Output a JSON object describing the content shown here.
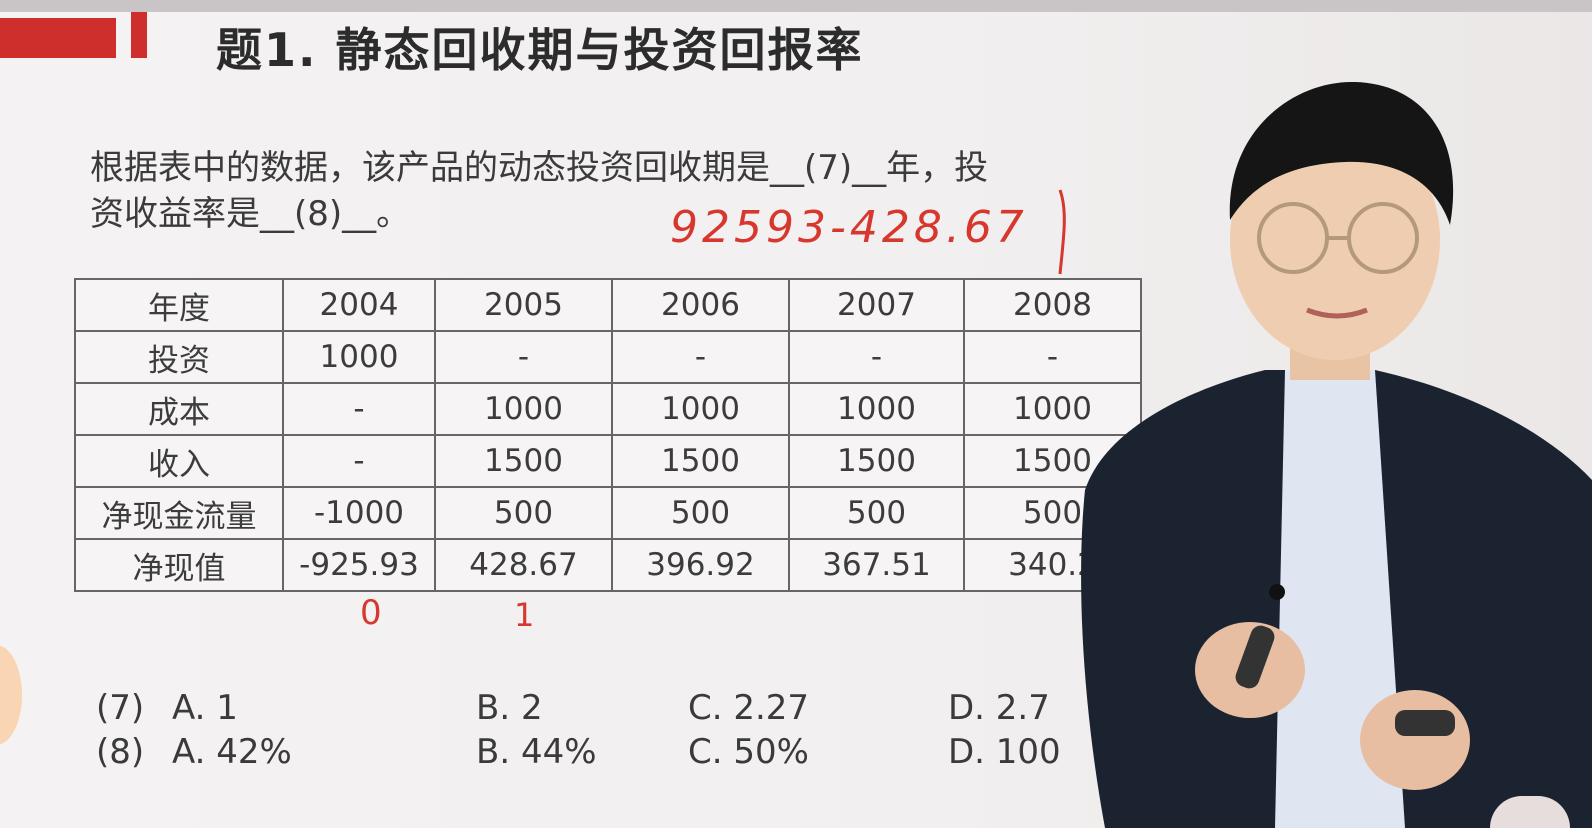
{
  "title": "题1. 静态回收期与投资回报率",
  "question": {
    "line1": "根据表中的数据，该产品的动态投资回收期是__(7)__年，投",
    "line2": "资收益率是__(8)__。"
  },
  "handwritten_note": "92593-428.67",
  "table": {
    "header": [
      "年度",
      "2004",
      "2005",
      "2006",
      "2007",
      "2008"
    ],
    "rows": [
      [
        "投资",
        "1000",
        "-",
        "-",
        "-",
        "-"
      ],
      [
        "成本",
        "-",
        "1000",
        "1000",
        "1000",
        "1000"
      ],
      [
        "收入",
        "-",
        "1500",
        "1500",
        "1500",
        "1500"
      ],
      [
        "净现金流量",
        "-1000",
        "500",
        "500",
        "500",
        "500"
      ],
      [
        "净现值",
        "-925.93",
        "428.67",
        "396.92",
        "367.51",
        "340.2"
      ]
    ]
  },
  "handwritten_marks": [
    "0",
    "1"
  ],
  "options": {
    "q7": {
      "label": "(7)",
      "a": "A. 1",
      "b": "B. 2",
      "c": "C. 2.27",
      "d": "D. 2.7"
    },
    "q8": {
      "label": "(8)",
      "a": "A. 42%",
      "b": "B. 44%",
      "c": "C. 50%",
      "d": "D. 100"
    }
  },
  "colors": {
    "accent": "#cf2f2c",
    "handwriting": "#d6382e",
    "suit": "#1c2330",
    "shirt": "#dfe6f2"
  }
}
